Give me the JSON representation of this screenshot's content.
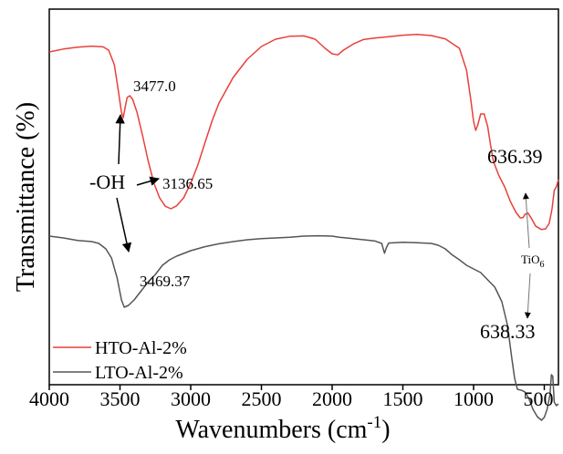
{
  "chart_data": {
    "type": "line",
    "xlabel": "Wavenumbers (cm",
    "xlabel_sup": "-1",
    "xlabel_close": ")",
    "ylabel": "Transmittance (%)",
    "xlim": [
      4000,
      400
    ],
    "x_reversed": true,
    "y_ticks_visible": false,
    "grid": false,
    "legend_placement": "bottom-left",
    "x_ticks": [
      "4000",
      "3500",
      "3000",
      "2500",
      "2000",
      "1500",
      "1000",
      "500"
    ],
    "series": [
      {
        "name": "HTO-Al-2%",
        "color": "#e8403a",
        "points": [
          [
            4000,
            0.87
          ],
          [
            3900,
            0.878
          ],
          [
            3800,
            0.883
          ],
          [
            3700,
            0.886
          ],
          [
            3620,
            0.884
          ],
          [
            3580,
            0.875
          ],
          [
            3540,
            0.835
          ],
          [
            3510,
            0.76
          ],
          [
            3490,
            0.705
          ],
          [
            3477,
            0.69
          ],
          [
            3465,
            0.715
          ],
          [
            3450,
            0.745
          ],
          [
            3430,
            0.75
          ],
          [
            3410,
            0.74
          ],
          [
            3380,
            0.705
          ],
          [
            3340,
            0.64
          ],
          [
            3300,
            0.57
          ],
          [
            3260,
            0.51
          ],
          [
            3220,
            0.47
          ],
          [
            3180,
            0.447
          ],
          [
            3140,
            0.44
          ],
          [
            3100,
            0.448
          ],
          [
            3050,
            0.47
          ],
          [
            3000,
            0.51
          ],
          [
            2950,
            0.56
          ],
          [
            2900,
            0.62
          ],
          [
            2850,
            0.68
          ],
          [
            2800,
            0.73
          ],
          [
            2700,
            0.8
          ],
          [
            2600,
            0.85
          ],
          [
            2500,
            0.885
          ],
          [
            2400,
            0.905
          ],
          [
            2300,
            0.913
          ],
          [
            2200,
            0.914
          ],
          [
            2120,
            0.905
          ],
          [
            2050,
            0.88
          ],
          [
            2000,
            0.865
          ],
          [
            1960,
            0.862
          ],
          [
            1920,
            0.875
          ],
          [
            1850,
            0.892
          ],
          [
            1780,
            0.904
          ],
          [
            1700,
            0.908
          ],
          [
            1600,
            0.912
          ],
          [
            1500,
            0.916
          ],
          [
            1400,
            0.918
          ],
          [
            1300,
            0.915
          ],
          [
            1200,
            0.906
          ],
          [
            1100,
            0.88
          ],
          [
            1050,
            0.82
          ],
          [
            1020,
            0.74
          ],
          [
            1000,
            0.68
          ],
          [
            985,
            0.655
          ],
          [
            970,
            0.67
          ],
          [
            950,
            0.7
          ],
          [
            925,
            0.7
          ],
          [
            900,
            0.665
          ],
          [
            880,
            0.615
          ],
          [
            860,
            0.57
          ],
          [
            820,
            0.53
          ],
          [
            780,
            0.5
          ],
          [
            740,
            0.46
          ],
          [
            700,
            0.43
          ],
          [
            670,
            0.415
          ],
          [
            650,
            0.416
          ],
          [
            636.39,
            0.425
          ],
          [
            615,
            0.428
          ],
          [
            590,
            0.413
          ],
          [
            560,
            0.392
          ],
          [
            520,
            0.383
          ],
          [
            490,
            0.385
          ],
          [
            465,
            0.4
          ],
          [
            445,
            0.44
          ],
          [
            430,
            0.49
          ],
          [
            415,
            0.5
          ],
          [
            400,
            0.52
          ]
        ]
      },
      {
        "name": "LTO-Al-2%",
        "color": "#555555",
        "points": [
          [
            4000,
            0.365
          ],
          [
            3900,
            0.36
          ],
          [
            3800,
            0.353
          ],
          [
            3700,
            0.35
          ],
          [
            3650,
            0.345
          ],
          [
            3600,
            0.33
          ],
          [
            3560,
            0.305
          ],
          [
            3520,
            0.25
          ],
          [
            3490,
            0.19
          ],
          [
            3469.37,
            0.17
          ],
          [
            3440,
            0.175
          ],
          [
            3400,
            0.19
          ],
          [
            3350,
            0.215
          ],
          [
            3300,
            0.24
          ],
          [
            3250,
            0.26
          ],
          [
            3200,
            0.285
          ],
          [
            3150,
            0.3
          ],
          [
            3100,
            0.31
          ],
          [
            3000,
            0.325
          ],
          [
            2900,
            0.336
          ],
          [
            2800,
            0.344
          ],
          [
            2700,
            0.35
          ],
          [
            2600,
            0.355
          ],
          [
            2500,
            0.358
          ],
          [
            2400,
            0.36
          ],
          [
            2300,
            0.362
          ],
          [
            2200,
            0.365
          ],
          [
            2100,
            0.366
          ],
          [
            2000,
            0.365
          ],
          [
            1950,
            0.362
          ],
          [
            1900,
            0.36
          ],
          [
            1800,
            0.356
          ],
          [
            1700,
            0.352
          ],
          [
            1650,
            0.345
          ],
          [
            1630,
            0.318
          ],
          [
            1615,
            0.335
          ],
          [
            1600,
            0.346
          ],
          [
            1500,
            0.348
          ],
          [
            1400,
            0.347
          ],
          [
            1300,
            0.345
          ],
          [
            1250,
            0.34
          ],
          [
            1200,
            0.33
          ],
          [
            1150,
            0.313
          ],
          [
            1100,
            0.3
          ],
          [
            1050,
            0.285
          ],
          [
            1000,
            0.275
          ],
          [
            950,
            0.265
          ],
          [
            900,
            0.245
          ],
          [
            850,
            0.225
          ],
          [
            800,
            0.185
          ],
          [
            760,
            0.12
          ],
          [
            730,
            0.03
          ],
          [
            710,
            -0.025
          ],
          [
            690,
            -0.055
          ],
          [
            660,
            -0.058
          ],
          [
            638.33,
            -0.062
          ],
          [
            610,
            -0.08
          ],
          [
            580,
            -0.11
          ],
          [
            550,
            -0.13
          ],
          [
            520,
            -0.14
          ],
          [
            500,
            -0.132
          ],
          [
            480,
            -0.11
          ],
          [
            460,
            -0.07
          ],
          [
            450,
            -0.015
          ],
          [
            440,
            -0.02
          ],
          [
            430,
            -0.09
          ],
          [
            415,
            -0.1
          ],
          [
            400,
            -0.095
          ]
        ]
      }
    ],
    "annotations": [
      {
        "text": "3477.0",
        "x": 3477.0,
        "series": 0
      },
      {
        "text": "3136.65",
        "x": 3136.65,
        "series": 0
      },
      {
        "text": "636.39",
        "x": 636.39,
        "series": 0
      },
      {
        "text": "3469.37",
        "x": 3469.37,
        "series": 1
      },
      {
        "text": "638.33",
        "x": 638.33,
        "series": 1
      },
      {
        "text": "-OH"
      },
      {
        "text": "TiO"
      },
      {
        "text": "6"
      }
    ]
  }
}
